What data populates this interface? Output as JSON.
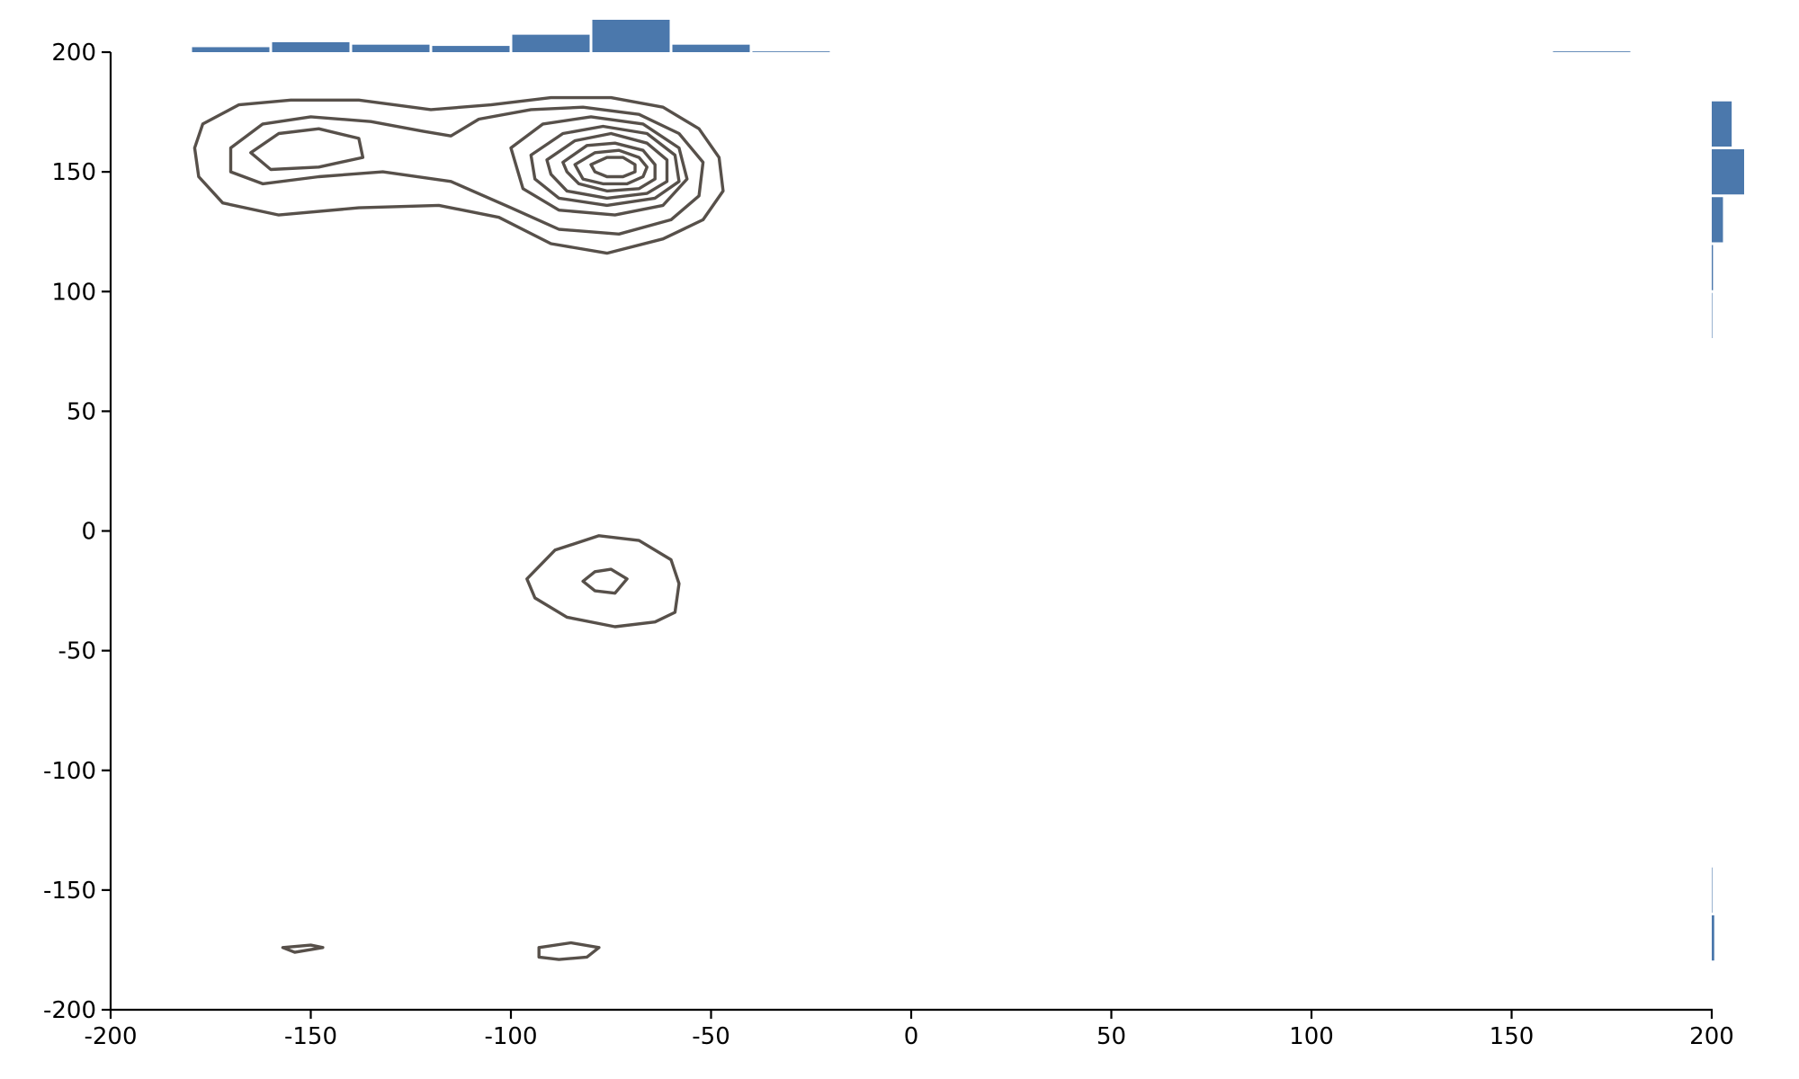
{
  "chart_data": {
    "type": "contour",
    "xlim": [
      -200,
      200
    ],
    "ylim": [
      -200,
      200
    ],
    "x_ticks": [
      -200,
      -150,
      -100,
      -50,
      0,
      50,
      100,
      150,
      200
    ],
    "y_ticks": [
      -200,
      -150,
      -100,
      -50,
      0,
      50,
      100,
      150,
      200
    ],
    "x_tick_labels": [
      "-200",
      "-150",
      "-100",
      "-50",
      "0",
      "50",
      "100",
      "150",
      "200"
    ],
    "y_tick_labels": [
      "-200",
      "-150",
      "-100",
      "-50",
      "0",
      "50",
      "100",
      "150",
      "200"
    ],
    "grid": false,
    "colors": {
      "histogram": "#4b78ac",
      "contour": "#57504a"
    },
    "marginal_x": {
      "bin_width": 20,
      "bins": [
        {
          "x0": -180,
          "count": 2
        },
        {
          "x0": -160,
          "count": 4
        },
        {
          "x0": -140,
          "count": 3
        },
        {
          "x0": -120,
          "count": 2.5
        },
        {
          "x0": -100,
          "count": 7
        },
        {
          "x0": -80,
          "count": 13
        },
        {
          "x0": -60,
          "count": 3
        },
        {
          "x0": -40,
          "count": 0.3
        },
        {
          "x0": 160,
          "count": 0.3
        }
      ]
    },
    "marginal_y": {
      "bin_width": 20,
      "bins": [
        {
          "y0": 160,
          "count": 8
        },
        {
          "y0": 140,
          "count": 13
        },
        {
          "y0": 120,
          "count": 4.5
        },
        {
          "y0": 100,
          "count": 0.5
        },
        {
          "y0": 80,
          "count": 0.2
        },
        {
          "y0": -160,
          "count": 0.2
        },
        {
          "y0": -180,
          "count": 1
        }
      ]
    },
    "contours": [
      {
        "closed": true,
        "points": [
          [
            -177,
            170
          ],
          [
            -168,
            178
          ],
          [
            -155,
            180
          ],
          [
            -138,
            180
          ],
          [
            -120,
            176
          ],
          [
            -105,
            178
          ],
          [
            -90,
            181
          ],
          [
            -75,
            181
          ],
          [
            -62,
            177
          ],
          [
            -53,
            168
          ],
          [
            -48,
            156
          ],
          [
            -47,
            142
          ],
          [
            -52,
            130
          ],
          [
            -62,
            122
          ],
          [
            -76,
            116
          ],
          [
            -90,
            120
          ],
          [
            -103,
            131
          ],
          [
            -118,
            136
          ],
          [
            -138,
            135
          ],
          [
            -158,
            132
          ],
          [
            -172,
            137
          ],
          [
            -178,
            148
          ],
          [
            -179,
            160
          ]
        ]
      },
      {
        "closed": true,
        "points": [
          [
            -170,
            160
          ],
          [
            -162,
            170
          ],
          [
            -150,
            173
          ],
          [
            -135,
            171
          ],
          [
            -122,
            167
          ],
          [
            -115,
            165
          ],
          [
            -108,
            172
          ],
          [
            -95,
            176
          ],
          [
            -82,
            177
          ],
          [
            -68,
            174
          ],
          [
            -58,
            166
          ],
          [
            -52,
            154
          ],
          [
            -53,
            140
          ],
          [
            -60,
            130
          ],
          [
            -73,
            124
          ],
          [
            -88,
            126
          ],
          [
            -100,
            135
          ],
          [
            -115,
            146
          ],
          [
            -132,
            150
          ],
          [
            -148,
            148
          ],
          [
            -162,
            145
          ],
          [
            -170,
            150
          ]
        ]
      },
      {
        "closed": true,
        "points": [
          [
            -165,
            158
          ],
          [
            -158,
            166
          ],
          [
            -148,
            168
          ],
          [
            -138,
            164
          ],
          [
            -137,
            156
          ],
          [
            -148,
            152
          ],
          [
            -160,
            151
          ]
        ]
      },
      {
        "closed": true,
        "points": [
          [
            -100,
            160
          ],
          [
            -92,
            170
          ],
          [
            -80,
            173
          ],
          [
            -67,
            170
          ],
          [
            -58,
            160
          ],
          [
            -56,
            147
          ],
          [
            -62,
            136
          ],
          [
            -74,
            132
          ],
          [
            -88,
            134
          ],
          [
            -97,
            143
          ]
        ]
      },
      {
        "closed": true,
        "points": [
          [
            -95,
            157
          ],
          [
            -87,
            166
          ],
          [
            -77,
            169
          ],
          [
            -66,
            166
          ],
          [
            -59,
            157
          ],
          [
            -58,
            146
          ],
          [
            -64,
            139
          ],
          [
            -76,
            136
          ],
          [
            -88,
            139
          ],
          [
            -94,
            147
          ]
        ]
      },
      {
        "closed": true,
        "points": [
          [
            -91,
            155
          ],
          [
            -84,
            163
          ],
          [
            -75,
            166
          ],
          [
            -66,
            162
          ],
          [
            -61,
            155
          ],
          [
            -61,
            146
          ],
          [
            -66,
            141
          ],
          [
            -76,
            139
          ],
          [
            -86,
            142
          ],
          [
            -90,
            149
          ]
        ]
      },
      {
        "closed": true,
        "points": [
          [
            -87,
            154
          ],
          [
            -81,
            161
          ],
          [
            -74,
            162
          ],
          [
            -67,
            159
          ],
          [
            -64,
            153
          ],
          [
            -64,
            147
          ],
          [
            -68,
            143
          ],
          [
            -76,
            142
          ],
          [
            -83,
            145
          ],
          [
            -86,
            150
          ]
        ]
      },
      {
        "closed": true,
        "points": [
          [
            -84,
            153
          ],
          [
            -79,
            158
          ],
          [
            -73,
            159
          ],
          [
            -68,
            156
          ],
          [
            -66,
            152
          ],
          [
            -67,
            148
          ],
          [
            -71,
            145
          ],
          [
            -77,
            145
          ],
          [
            -82,
            147
          ]
        ]
      },
      {
        "closed": true,
        "points": [
          [
            -80,
            153
          ],
          [
            -76,
            156
          ],
          [
            -72,
            156
          ],
          [
            -69,
            153
          ],
          [
            -69,
            150
          ],
          [
            -72,
            148
          ],
          [
            -76,
            148
          ],
          [
            -79,
            150
          ]
        ]
      },
      {
        "closed": true,
        "points": [
          [
            -96,
            -20
          ],
          [
            -89,
            -8
          ],
          [
            -78,
            -2
          ],
          [
            -68,
            -4
          ],
          [
            -60,
            -12
          ],
          [
            -58,
            -22
          ],
          [
            -59,
            -34
          ],
          [
            -64,
            -38
          ],
          [
            -74,
            -40
          ],
          [
            -86,
            -36
          ],
          [
            -94,
            -28
          ]
        ]
      },
      {
        "closed": true,
        "points": [
          [
            -79,
            -17
          ],
          [
            -75,
            -16
          ],
          [
            -71,
            -20
          ],
          [
            -74,
            -26
          ],
          [
            -79,
            -25
          ],
          [
            -82,
            -21
          ]
        ]
      },
      {
        "closed": true,
        "points": [
          [
            -157,
            -174
          ],
          [
            -150,
            -173
          ],
          [
            -147,
            -174
          ],
          [
            -154,
            -176
          ]
        ]
      },
      {
        "closed": true,
        "points": [
          [
            -93,
            -174
          ],
          [
            -85,
            -172
          ],
          [
            -78,
            -174
          ],
          [
            -81,
            -178
          ],
          [
            -88,
            -179
          ],
          [
            -93,
            -178
          ]
        ]
      }
    ]
  }
}
